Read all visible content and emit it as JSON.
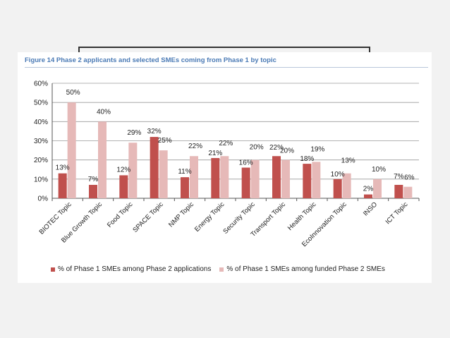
{
  "figure": {
    "title": "Figure 14 Phase 2 applicants and selected SMEs coming from Phase 1 by topic"
  },
  "colors": {
    "series1": "#c0504d",
    "series2": "#e6b9b8",
    "grid": "#9a9a9a"
  },
  "chart_data": {
    "type": "bar",
    "title": "Figure 14 Phase 2 applicants and selected SMEs coming from Phase 1 by topic",
    "categories": [
      "BIOTEC Topic",
      "Blue Growth Topic",
      "Food Topic",
      "SPACE Topic",
      "NMP Topic",
      "Energy Topic",
      "Security Topic",
      "Transport Topic",
      "Health Topic",
      "EcoInnovation Topic",
      "INSO",
      "ICT Topic"
    ],
    "series": [
      {
        "name": "% of Phase 1 SMEs among Phase 2 applications",
        "values": [
          13,
          7,
          12,
          32,
          11,
          21,
          16,
          22,
          18,
          10,
          2,
          7
        ],
        "labels": [
          "13%",
          "7%",
          "12%",
          "32%",
          "11%",
          "21%",
          "16%",
          "22%",
          "18%",
          "10%",
          "2%",
          "7%"
        ]
      },
      {
        "name": "% of Phase 1 SMEs among funded Phase 2 SMEs",
        "values": [
          50,
          40,
          29,
          25,
          22,
          22,
          20,
          20,
          19,
          13,
          10,
          6
        ],
        "labels": [
          "50%",
          "40%",
          "29%",
          "25%",
          "22%",
          "22%",
          "20%",
          "20%",
          "19%",
          "13%",
          "10%",
          "6%"
        ]
      }
    ],
    "ylim": [
      0,
      60
    ],
    "yticks": [
      "0%",
      "10%",
      "20%",
      "30%",
      "40%",
      "50%",
      "60%"
    ],
    "grid": true,
    "legend": "bottom"
  }
}
